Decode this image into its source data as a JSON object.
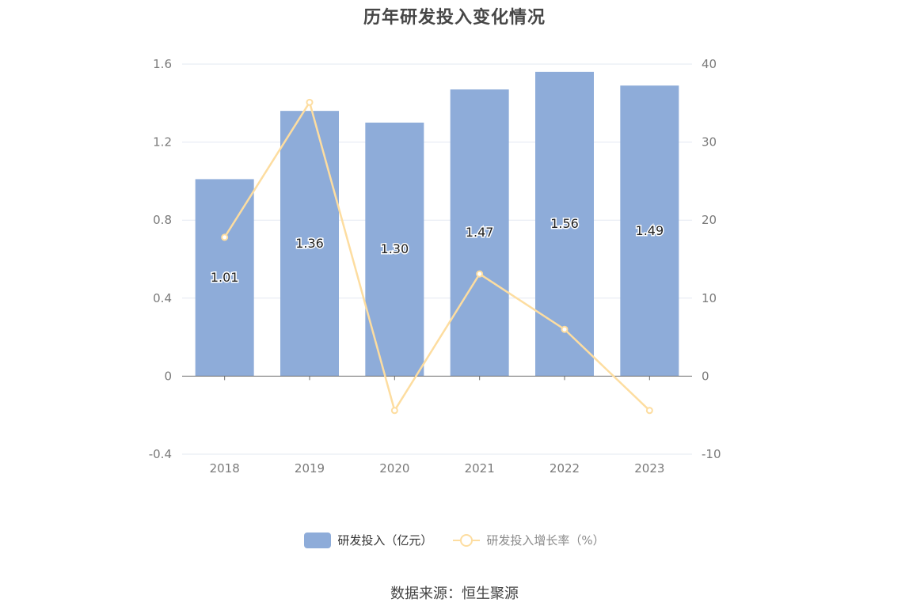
{
  "title": "历年研发投入变化情况",
  "source": "数据来源：恒生聚源",
  "colors": {
    "bar": "#8eacd9",
    "line": "#fddda0",
    "axis": "#7a7a7a",
    "grid": "#e3e8f2"
  },
  "legend": {
    "bar_label": "研发投入（亿元）",
    "line_label": "研发投入增长率（%）"
  },
  "chart_data": {
    "type": "bar",
    "categories": [
      "2018",
      "2019",
      "2020",
      "2021",
      "2022",
      "2023"
    ],
    "series": [
      {
        "name": "研发投入（亿元）",
        "type": "bar",
        "axis": "left",
        "values": [
          1.01,
          1.36,
          1.3,
          1.47,
          1.56,
          1.49
        ],
        "labels": [
          "1.01",
          "1.36",
          "1.30",
          "1.47",
          "1.56",
          "1.49"
        ]
      },
      {
        "name": "研发投入增长率（%）",
        "type": "line",
        "axis": "right",
        "values": [
          17.8,
          35.1,
          -4.4,
          13.1,
          6.0,
          -4.4
        ]
      }
    ],
    "y_left": {
      "ylim": [
        -0.4,
        1.6
      ],
      "ticks": [
        -0.4,
        0,
        0.4,
        0.8,
        1.2,
        1.6
      ],
      "tick_labels": [
        "-0.4",
        "0",
        "0.4",
        "0.8",
        "1.2",
        "1.6"
      ]
    },
    "y_right": {
      "ylim": [
        -10,
        40
      ],
      "ticks": [
        -10,
        0,
        10,
        20,
        30,
        40
      ],
      "tick_labels": [
        "-10",
        "0",
        "10",
        "20",
        "30",
        "40"
      ]
    },
    "grid": true,
    "legend_position": "bottom"
  }
}
